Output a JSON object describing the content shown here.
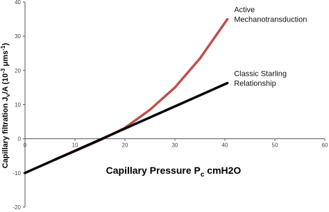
{
  "chart_data": {
    "type": "line",
    "x_label_parts": [
      "Capillary Pressure P",
      "c",
      " cmH2O"
    ],
    "y_label_parts": [
      "Capillary filtration J",
      "v",
      "/A (10",
      "-3",
      " μms",
      "-1",
      ")"
    ],
    "xlim": [
      0,
      60
    ],
    "xticks": [
      0,
      10,
      20,
      30,
      40,
      50,
      60
    ],
    "ylim": [
      -20,
      40
    ],
    "yticks": [
      -20,
      -10,
      0,
      10,
      20,
      30,
      40
    ],
    "series": [
      {
        "color": "#c0504d",
        "x": [
          6,
          10,
          15,
          20,
          25,
          30,
          35,
          40.5
        ],
        "values": [
          -6.1,
          -3.6,
          -0.4,
          3.2,
          8.5,
          15,
          23.5,
          35
        ]
      },
      {
        "color": "#000000",
        "x": [
          0,
          40.5
        ],
        "values": [
          -10,
          16.3
        ]
      }
    ],
    "annotations": [
      {
        "lines": [
          "Active",
          "Mechanotransduction"
        ],
        "x": 41,
        "y": 35
      },
      {
        "lines": [
          "Classic Starling",
          "Relationship"
        ],
        "x": 41,
        "y": 16.3
      }
    ]
  }
}
